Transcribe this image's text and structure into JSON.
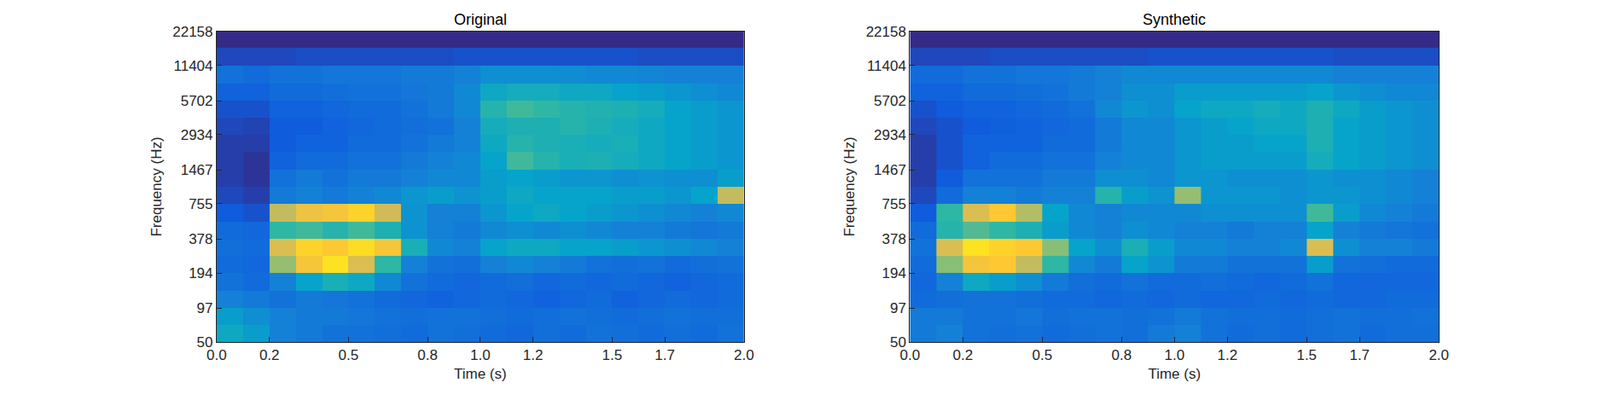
{
  "chart_data": [
    {
      "type": "heatmap",
      "title": "Original",
      "xlabel": "Time (s)",
      "ylabel": "Frequency (Hz)",
      "log": "y",
      "xlim": [
        0,
        2
      ],
      "ylim": [
        50,
        22158
      ],
      "xticks": [
        {
          "value": 0,
          "label": "0.0"
        },
        0.2,
        0.5,
        0.8,
        {
          "value": 1,
          "label": "1.0"
        },
        1.2,
        1.5,
        1.7,
        {
          "value": 2,
          "label": "2.0"
        }
      ],
      "yticks": [
        50,
        97,
        194,
        378,
        755,
        1467,
        2934,
        5702,
        11404,
        22158
      ],
      "zlim": [
        20,
        100
      ],
      "x": [
        0,
        0.1,
        0.2,
        0.3,
        0.4,
        0.5,
        0.6,
        0.7,
        0.8,
        0.9,
        1.0,
        1.1,
        1.2,
        1.3,
        1.4,
        1.5,
        1.6,
        1.7,
        1.8,
        1.9,
        2.0
      ],
      "y": [
        50,
        70,
        97,
        137,
        194,
        271,
        378,
        534,
        755,
        1050,
        1467,
        2075,
        2934,
        4100,
        5702,
        8000,
        11404,
        16000,
        22158
      ],
      "z": [
        [
          52,
          48,
          40,
          38,
          36,
          36,
          35,
          34,
          36,
          35,
          34,
          33,
          35,
          34,
          36,
          35,
          34,
          35,
          34,
          36
        ],
        [
          48,
          44,
          40,
          38,
          38,
          37,
          36,
          35,
          36,
          36,
          35,
          34,
          35,
          36,
          35,
          34,
          35,
          36,
          35,
          35
        ],
        [
          40,
          38,
          36,
          38,
          37,
          36,
          34,
          33,
          32,
          33,
          34,
          33,
          32,
          33,
          34,
          32,
          33,
          34,
          33,
          34
        ],
        [
          36,
          34,
          40,
          50,
          55,
          52,
          42,
          36,
          34,
          33,
          34,
          35,
          33,
          34,
          33,
          34,
          33,
          32,
          33,
          34
        ],
        [
          34,
          33,
          72,
          88,
          95,
          82,
          60,
          40,
          36,
          35,
          40,
          42,
          40,
          38,
          36,
          35,
          36,
          34,
          35,
          36
        ],
        [
          35,
          34,
          82,
          92,
          90,
          94,
          88,
          55,
          42,
          40,
          50,
          52,
          52,
          50,
          50,
          48,
          46,
          44,
          42,
          40
        ],
        [
          34,
          33,
          60,
          62,
          58,
          62,
          56,
          45,
          40,
          38,
          42,
          44,
          42,
          44,
          42,
          40,
          40,
          38,
          37,
          38
        ],
        [
          30,
          28,
          78,
          86,
          88,
          92,
          80,
          45,
          40,
          40,
          46,
          50,
          52,
          50,
          48,
          46,
          44,
          42,
          40,
          42
        ],
        [
          26,
          24,
          38,
          40,
          38,
          40,
          42,
          46,
          48,
          45,
          48,
          52,
          50,
          50,
          50,
          48,
          48,
          46,
          50,
          78
        ],
        [
          24,
          22,
          36,
          38,
          36,
          38,
          38,
          40,
          42,
          42,
          48,
          50,
          48,
          46,
          46,
          44,
          45,
          44,
          44,
          48
        ],
        [
          24,
          22,
          32,
          34,
          34,
          36,
          36,
          38,
          40,
          42,
          50,
          62,
          58,
          55,
          56,
          54,
          52,
          50,
          48,
          46
        ],
        [
          24,
          24,
          30,
          32,
          32,
          34,
          34,
          36,
          38,
          40,
          52,
          58,
          56,
          55,
          54,
          55,
          52,
          50,
          48,
          46
        ],
        [
          26,
          25,
          30,
          30,
          32,
          33,
          34,
          35,
          36,
          40,
          54,
          56,
          56,
          58,
          56,
          54,
          52,
          50,
          48,
          46
        ],
        [
          28,
          28,
          32,
          32,
          33,
          34,
          34,
          36,
          38,
          42,
          58,
          62,
          60,
          58,
          57,
          56,
          54,
          50,
          48,
          46
        ],
        [
          32,
          32,
          34,
          34,
          35,
          36,
          36,
          37,
          38,
          42,
          52,
          54,
          54,
          52,
          52,
          50,
          48,
          46,
          44,
          42
        ],
        [
          36,
          34,
          36,
          36,
          37,
          37,
          37,
          38,
          38,
          40,
          44,
          44,
          44,
          43,
          42,
          42,
          41,
          40,
          40,
          40
        ],
        [
          26,
          26,
          26,
          27,
          27,
          27,
          27,
          27,
          27,
          28,
          28,
          28,
          28,
          28,
          28,
          28,
          27,
          27,
          27,
          27
        ],
        [
          16,
          16,
          16,
          17,
          17,
          17,
          17,
          17,
          17,
          18,
          18,
          18,
          18,
          18,
          18,
          18,
          17,
          17,
          17,
          17
        ]
      ]
    },
    {
      "type": "heatmap",
      "title": "Synthetic",
      "xlabel": "Time (s)",
      "ylabel": "Frequency (Hz)",
      "log": "y",
      "xlim": [
        0,
        2
      ],
      "ylim": [
        50,
        22158
      ],
      "xticks": [
        {
          "value": 0,
          "label": "0.0"
        },
        0.2,
        0.5,
        0.8,
        {
          "value": 1,
          "label": "1.0"
        },
        1.2,
        1.5,
        1.7,
        {
          "value": 2,
          "label": "2.0"
        }
      ],
      "yticks": [
        50,
        97,
        194,
        378,
        755,
        1467,
        2934,
        5702,
        11404,
        22158
      ],
      "zlim": [
        20,
        100
      ],
      "x": [
        0,
        0.1,
        0.2,
        0.3,
        0.4,
        0.5,
        0.6,
        0.7,
        0.8,
        0.9,
        1.0,
        1.1,
        1.2,
        1.3,
        1.4,
        1.5,
        1.6,
        1.7,
        1.8,
        1.9,
        2.0
      ],
      "y": [
        50,
        70,
        97,
        137,
        194,
        271,
        378,
        534,
        755,
        1050,
        1467,
        2075,
        2934,
        4100,
        5702,
        8000,
        11404,
        16000,
        22158
      ],
      "z": [
        [
          38,
          40,
          36,
          35,
          36,
          34,
          35,
          36,
          35,
          38,
          40,
          36,
          34,
          35,
          34,
          35,
          36,
          34,
          35,
          35
        ],
        [
          38,
          38,
          36,
          36,
          37,
          35,
          36,
          36,
          35,
          36,
          38,
          36,
          35,
          35,
          34,
          35,
          36,
          35,
          35,
          36
        ],
        [
          34,
          35,
          36,
          36,
          35,
          34,
          34,
          33,
          34,
          33,
          34,
          33,
          33,
          34,
          33,
          34,
          33,
          33,
          34,
          34
        ],
        [
          33,
          40,
          52,
          48,
          44,
          38,
          35,
          34,
          36,
          34,
          34,
          35,
          34,
          33,
          34,
          36,
          33,
          33,
          33,
          33
        ],
        [
          34,
          70,
          88,
          90,
          78,
          60,
          42,
          38,
          50,
          45,
          38,
          38,
          36,
          36,
          36,
          48,
          36,
          35,
          34,
          34
        ],
        [
          36,
          82,
          95,
          92,
          90,
          70,
          50,
          44,
          55,
          48,
          42,
          42,
          40,
          40,
          42,
          82,
          44,
          40,
          40,
          38
        ],
        [
          34,
          58,
          64,
          60,
          56,
          48,
          42,
          40,
          44,
          42,
          40,
          40,
          38,
          40,
          40,
          50,
          40,
          38,
          37,
          36
        ],
        [
          30,
          60,
          82,
          90,
          76,
          50,
          42,
          40,
          42,
          42,
          42,
          44,
          44,
          44,
          44,
          62,
          48,
          42,
          40,
          38
        ],
        [
          26,
          34,
          40,
          40,
          38,
          40,
          40,
          58,
          48,
          45,
          72,
          46,
          46,
          46,
          44,
          46,
          46,
          44,
          42,
          40
        ],
        [
          24,
          30,
          36,
          36,
          36,
          38,
          38,
          44,
          44,
          42,
          46,
          46,
          44,
          44,
          44,
          46,
          44,
          44,
          42,
          40
        ],
        [
          24,
          28,
          32,
          34,
          34,
          36,
          36,
          40,
          42,
          42,
          46,
          48,
          48,
          48,
          48,
          54,
          50,
          48,
          46,
          44
        ],
        [
          24,
          28,
          32,
          32,
          32,
          34,
          34,
          38,
          42,
          42,
          46,
          48,
          48,
          50,
          50,
          56,
          50,
          48,
          46,
          44
        ],
        [
          26,
          28,
          30,
          31,
          32,
          33,
          34,
          38,
          42,
          42,
          46,
          48,
          50,
          52,
          52,
          56,
          50,
          48,
          46,
          44
        ],
        [
          28,
          30,
          32,
          32,
          33,
          34,
          36,
          42,
          46,
          44,
          50,
          52,
          52,
          54,
          52,
          56,
          52,
          48,
          46,
          44
        ],
        [
          32,
          32,
          34,
          34,
          35,
          36,
          38,
          40,
          44,
          44,
          48,
          48,
          48,
          48,
          48,
          50,
          46,
          44,
          42,
          42
        ],
        [
          34,
          34,
          36,
          36,
          37,
          37,
          38,
          40,
          42,
          42,
          42,
          42,
          42,
          42,
          42,
          42,
          40,
          40,
          40,
          40
        ],
        [
          26,
          26,
          26,
          27,
          27,
          27,
          27,
          27,
          27,
          28,
          28,
          28,
          28,
          28,
          28,
          28,
          27,
          27,
          27,
          27
        ],
        [
          16,
          16,
          16,
          17,
          17,
          17,
          17,
          17,
          17,
          18,
          18,
          18,
          18,
          18,
          18,
          18,
          17,
          17,
          17,
          17
        ]
      ]
    }
  ]
}
